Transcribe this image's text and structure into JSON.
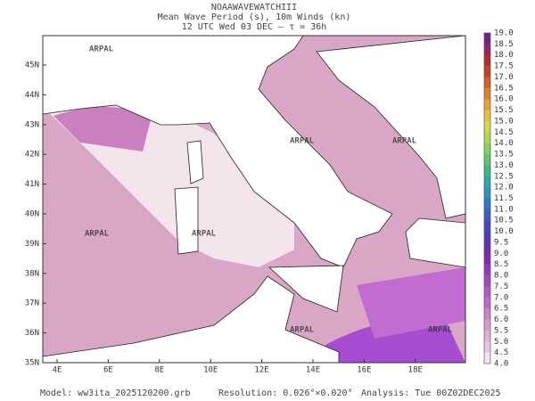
{
  "header": {
    "title": "NOAAWAVEWATCHIII",
    "subtitle": "Mean Wave Period (s), 10m Winds (kn)",
    "time": "12 UTC Wed 03 DEC  —  τ = 36h"
  },
  "map": {
    "lat_labels": [
      "45N",
      "44N",
      "43N",
      "42N",
      "41N",
      "40N",
      "39N",
      "38N",
      "37N",
      "36N",
      "35N"
    ],
    "lon_labels": [
      "4E",
      "6E",
      "8E",
      "10E",
      "12E",
      "14E",
      "16E",
      "18E"
    ],
    "watermark": "ARPAL"
  },
  "colorbar": {
    "labels": [
      "19.0",
      "18.5",
      "18.0",
      "17.5",
      "17.0",
      "16.5",
      "16.0",
      "15.5",
      "15.0",
      "14.5",
      "14.0",
      "13.5",
      "13.0",
      "12.5",
      "12.0",
      "11.5",
      "11.0",
      "10.5",
      "10.0",
      "9.5",
      "9.0",
      "8.5",
      "8.0",
      "7.5",
      "7.0",
      "6.5",
      "6.0",
      "5.5",
      "5.0",
      "4.5",
      "4.0"
    ]
  },
  "footer": {
    "model": "Model: ww3ita_2025120200.grb",
    "resolution": "Resolution: 0.026°×0.020°",
    "analysis": "Analysis: Tue 00Z02DEC2025"
  }
}
